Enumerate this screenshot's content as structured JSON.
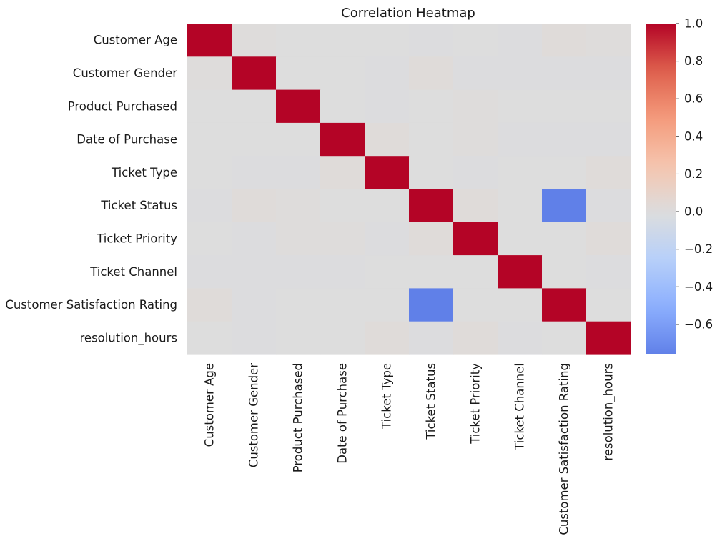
{
  "chart_data": {
    "type": "heatmap",
    "title": "Correlation Heatmap",
    "xlabel": "",
    "ylabel": "",
    "rows": [
      "Customer Age",
      "Customer Gender",
      "Product Purchased",
      "Date of Purchase",
      "Ticket Type",
      "Ticket Status",
      "Ticket Priority",
      "Ticket Channel",
      "Customer Satisfaction Rating",
      "resolution_hours"
    ],
    "columns": [
      "Customer Age",
      "Customer Gender",
      "Product Purchased",
      "Date of Purchase",
      "Ticket Type",
      "Ticket Status",
      "Ticket Priority",
      "Ticket Channel",
      "Customer Satisfaction Rating",
      "resolution_hours"
    ],
    "values": [
      [
        1.0,
        0.01,
        0.0,
        0.0,
        0.0,
        -0.01,
        0.0,
        -0.01,
        0.02,
        0.01
      ],
      [
        0.01,
        1.0,
        0.0,
        0.0,
        -0.01,
        0.02,
        -0.01,
        -0.01,
        -0.01,
        -0.01
      ],
      [
        0.0,
        0.0,
        1.0,
        0.0,
        -0.01,
        0.0,
        0.01,
        0.0,
        0.0,
        0.0
      ],
      [
        0.0,
        0.0,
        0.0,
        1.0,
        0.02,
        0.0,
        0.01,
        -0.01,
        -0.01,
        -0.01
      ],
      [
        0.0,
        -0.01,
        -0.01,
        0.02,
        1.0,
        0.0,
        -0.01,
        0.0,
        0.0,
        0.02
      ],
      [
        -0.01,
        0.02,
        0.01,
        0.0,
        0.0,
        1.0,
        0.02,
        0.0,
        -0.76,
        -0.01
      ],
      [
        0.0,
        -0.01,
        0.01,
        0.01,
        -0.01,
        0.02,
        1.0,
        0.0,
        0.0,
        0.02
      ],
      [
        -0.01,
        -0.01,
        -0.01,
        -0.01,
        0.0,
        0.0,
        0.0,
        1.0,
        0.0,
        -0.01
      ],
      [
        0.02,
        -0.01,
        0.0,
        0.0,
        0.0,
        -0.76,
        0.0,
        0.0,
        1.0,
        0.0
      ],
      [
        0.0,
        -0.01,
        0.0,
        0.0,
        0.02,
        -0.01,
        0.02,
        -0.01,
        0.0,
        1.0
      ]
    ],
    "colormap": "coolwarm",
    "center": 0,
    "vmin": -0.76,
    "vmax": 1.0,
    "colorbar_ticks": [
      "1.0",
      "0.8",
      "0.6",
      "0.4",
      "0.2",
      "0.0",
      "−0.2",
      "−0.4",
      "−0.6"
    ],
    "colorbar_tick_values": [
      1.0,
      0.8,
      0.6,
      0.4,
      0.2,
      0.0,
      -0.2,
      -0.4,
      -0.6
    ],
    "grid": false,
    "legend": "colorbar-right"
  }
}
